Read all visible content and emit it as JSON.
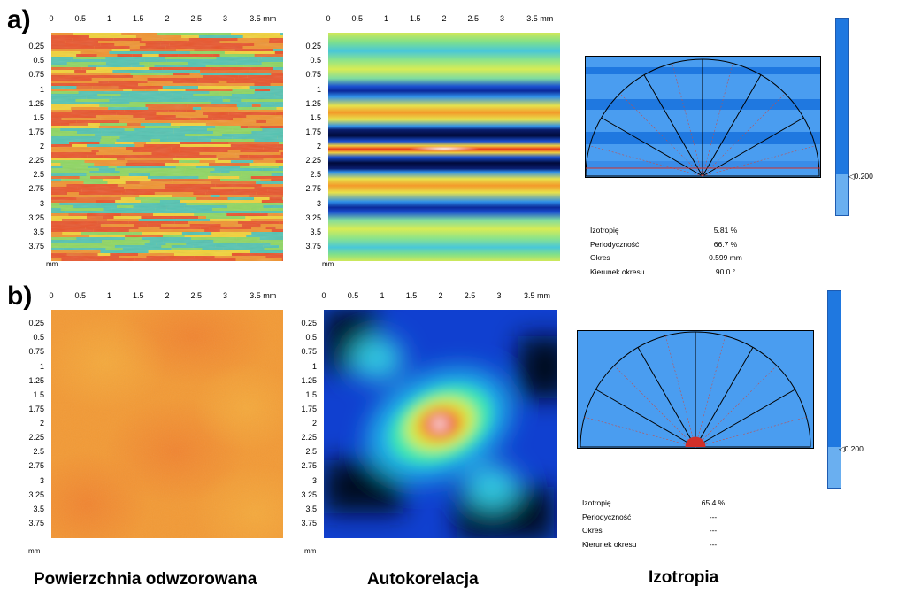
{
  "panels": [
    {
      "label": "a)",
      "surface": {
        "ticks_x": [
          "0",
          "0.5",
          "1",
          "1.5",
          "2",
          "2.5",
          "3",
          "3.5 mm"
        ],
        "ticks_y": [
          "0.25",
          "0.5",
          "0.75",
          "1",
          "1.25",
          "1.5",
          "1.75",
          "2",
          "2.25",
          "2.5",
          "2.75",
          "3",
          "3.25",
          "3.5",
          "3.75"
        ],
        "unit": "mm"
      },
      "autocorr": {
        "ticks_x": [
          "0",
          "0.5",
          "1",
          "1.5",
          "2",
          "2.5",
          "3",
          "3.5 mm"
        ],
        "ticks_y": [
          "0.25",
          "0.5",
          "0.75",
          "1",
          "1.25",
          "1.5",
          "1.75",
          "2",
          "2.25",
          "2.5",
          "2.75",
          "3",
          "3.25",
          "3.5",
          "3.75"
        ],
        "unit": "mm"
      },
      "scale_value": "0.200",
      "stats": [
        {
          "name": "Izotropię",
          "value": "5.81 %"
        },
        {
          "name": "Periodyczność",
          "value": "66.7 %"
        },
        {
          "name": "Okres",
          "value": "0.599 mm"
        },
        {
          "name": "Kierunek okresu",
          "value": "90.0 °"
        }
      ]
    },
    {
      "label": "b)",
      "surface": {
        "ticks_x": [
          "0",
          "0.5",
          "1",
          "1.5",
          "2",
          "2.5",
          "3",
          "3.5 mm"
        ],
        "ticks_y": [
          "0.25",
          "0.5",
          "0.75",
          "1",
          "1.25",
          "1.5",
          "1.75",
          "2",
          "2.25",
          "2.5",
          "2.75",
          "3",
          "3.25",
          "3.5",
          "3.75"
        ],
        "unit": "mm"
      },
      "autocorr": {
        "ticks_x": [
          "0",
          "0.5",
          "1",
          "1.5",
          "2",
          "2.5",
          "3",
          "3.5 mm"
        ],
        "ticks_y": [
          "0.25",
          "0.5",
          "0.75",
          "1",
          "1.25",
          "1.5",
          "1.75",
          "2",
          "2.25",
          "2.5",
          "2.75",
          "3",
          "3.25",
          "3.5",
          "3.75"
        ],
        "unit": "mm"
      },
      "scale_value": "0.200",
      "stats": [
        {
          "name": "Izotropię",
          "value": "65.4 %"
        },
        {
          "name": "Periodyczność",
          "value": "---"
        },
        {
          "name": "Okres",
          "value": "---"
        },
        {
          "name": "Kierunek okresu",
          "value": "---"
        }
      ]
    }
  ],
  "captions": {
    "surface": "Powierzchnia odwzorowana",
    "autocorr": "Autokorelacja",
    "isotropy": "Izotropia"
  },
  "colors": {
    "isotropy_bg": "#4a9df0",
    "isotropy_dark": "#1e6fd6",
    "scale_top": "#1f78e0",
    "scale_bottom": "#6aaff0"
  }
}
